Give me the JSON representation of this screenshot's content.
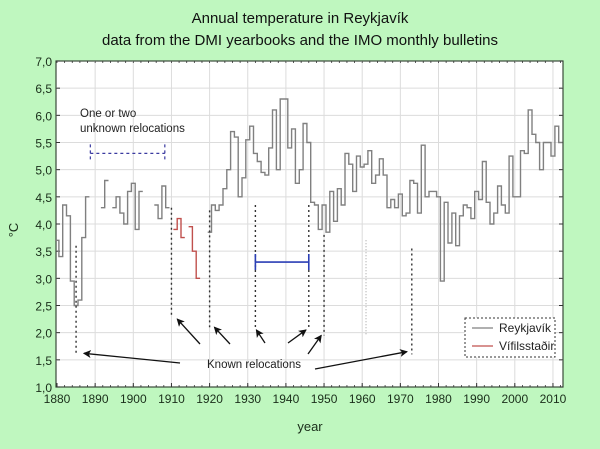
{
  "chart_data": {
    "type": "line",
    "title": "Annual temperature in Reykjavík",
    "subtitle": "data from the DMI yearbooks and the IMO monthly bulletins",
    "xlabel": "year",
    "ylabel": "°C",
    "xlim": [
      1880,
      2013
    ],
    "ylim": [
      1.0,
      7.0
    ],
    "x_ticks": [
      1880,
      1890,
      1900,
      1910,
      1920,
      1930,
      1940,
      1950,
      1960,
      1970,
      1980,
      1990,
      2000,
      2010
    ],
    "y_ticks": [
      "1,0",
      "1,5",
      "2,0",
      "2,5",
      "3,0",
      "3,5",
      "4,0",
      "4,5",
      "5,0",
      "5,5",
      "6,0",
      "6,5",
      "7,0"
    ],
    "grid": true,
    "legend_position": "bottom-right",
    "series": [
      {
        "name": "Reykjavík",
        "color": "#808080",
        "segments": [
          {
            "start": 1880,
            "values": [
              3.7,
              3.4,
              4.35,
              4.15,
              2.95,
              2.5,
              2.6,
              3.75,
              4.5
            ]
          },
          {
            "start": 1892,
            "values": [
              4.3,
              4.8
            ]
          },
          {
            "start": 1895,
            "values": [
              4.3,
              4.5,
              4.2,
              4.0,
              4.6,
              4.75,
              3.9,
              4.6
            ]
          },
          {
            "start": 1906,
            "values": [
              4.35,
              4.1,
              4.7,
              4.3
            ]
          },
          {
            "start": 1920,
            "values": [
              3.85,
              4.35,
              4.25,
              4.35,
              4.65,
              5.0,
              5.7,
              5.6,
              4.5,
              4.85,
              5.55,
              5.8,
              5.3,
              5.15,
              4.95,
              4.9,
              5.4,
              6.1,
              5.0,
              6.3,
              6.3,
              5.4,
              5.75,
              4.75,
              5.0,
              5.85,
              5.5,
              4.4,
              4.35,
              3.9,
              4.35,
              3.85,
              4.6,
              4.05,
              4.65,
              4.35,
              5.3,
              5.1,
              4.6,
              5.25,
              5.05,
              5.1,
              5.35,
              4.75,
              4.9,
              5.2,
              4.9,
              4.3,
              4.45,
              4.3,
              4.55,
              4.15,
              4.2,
              4.8,
              4.75,
              4.2,
              5.45,
              4.5,
              4.6,
              4.6,
              4.5,
              2.95,
              4.4,
              3.65,
              4.2,
              3.6,
              4.15,
              4.35,
              4.3,
              4.1,
              4.6,
              4.45,
              5.15,
              4.4,
              4.0,
              4.2,
              4.7,
              4.35,
              4.2,
              5.25,
              4.5,
              4.5,
              5.35,
              5.3,
              6.1,
              5.65,
              5.5,
              5.0,
              5.5,
              5.5,
              5.25,
              5.8,
              5.5
            ]
          }
        ]
      },
      {
        "name": "Vífilsstaðir",
        "color": "#c0504d",
        "segments": [
          {
            "start": 1911,
            "values": [
              3.9,
              4.1,
              3.75
            ]
          },
          {
            "start": 1915,
            "values": [
              3.95,
              3.5,
              3.0
            ]
          }
        ]
      }
    ],
    "annotations": {
      "unknown_relocations": {
        "text_line1": "One or two",
        "text_line2": "unknown relocations",
        "from_year": 1889,
        "to_year": 1908,
        "level": 5.3
      },
      "known_relocations": {
        "text": "Known relocations",
        "years": [
          1885,
          1910,
          1920,
          1932,
          1946,
          1950,
          1973
        ]
      },
      "marker_years": [
        1961
      ],
      "blue_bar": {
        "from_year": 1932,
        "to_year": 1946,
        "level": 3.3,
        "color": "#2b3fb5"
      }
    }
  }
}
